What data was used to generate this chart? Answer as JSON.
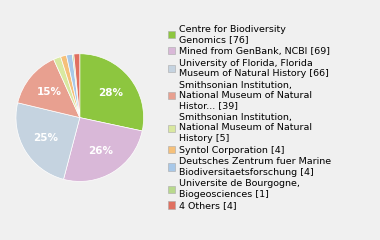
{
  "labels": [
    "Centre for Biodiversity\nGenomics [76]",
    "Mined from GenBank, NCBI [69]",
    "University of Florida, Florida\nMuseum of Natural History [66]",
    "Smithsonian Institution,\nNational Museum of Natural\nHistor... [39]",
    "Smithsonian Institution,\nNational Museum of Natural\nHistory [5]",
    "Syntol Corporation [4]",
    "Deutsches Zentrum fuer Marine\nBiodiversitaetsforschung [4]",
    "Universite de Bourgogne,\nBiogeosciences [1]",
    "4 Others [4]"
  ],
  "values": [
    76,
    69,
    66,
    39,
    5,
    4,
    4,
    1,
    4
  ],
  "colors": [
    "#8dc63f",
    "#d9b8d8",
    "#c5d3e0",
    "#e8a090",
    "#d9e8a0",
    "#f5c07a",
    "#a8c8e8",
    "#b8d98d",
    "#e07060"
  ],
  "slice_order": [
    0,
    1,
    2,
    3,
    4,
    5,
    6,
    7,
    8
  ],
  "background_color": "#f0f0f0",
  "legend_fontsize": 6.8,
  "pct_fontsize": 7.5,
  "figsize": [
    3.8,
    2.4
  ],
  "dpi": 100
}
